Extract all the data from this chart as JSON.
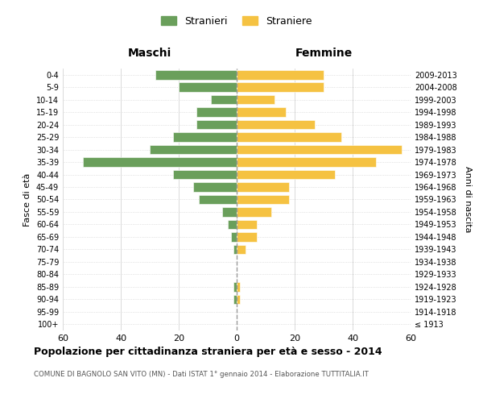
{
  "age_groups": [
    "100+",
    "95-99",
    "90-94",
    "85-89",
    "80-84",
    "75-79",
    "70-74",
    "65-69",
    "60-64",
    "55-59",
    "50-54",
    "45-49",
    "40-44",
    "35-39",
    "30-34",
    "25-29",
    "20-24",
    "15-19",
    "10-14",
    "5-9",
    "0-4"
  ],
  "birth_years": [
    "≤ 1913",
    "1914-1918",
    "1919-1923",
    "1924-1928",
    "1929-1933",
    "1934-1938",
    "1939-1943",
    "1944-1948",
    "1949-1953",
    "1954-1958",
    "1959-1963",
    "1964-1968",
    "1969-1973",
    "1974-1978",
    "1979-1983",
    "1984-1988",
    "1989-1993",
    "1994-1998",
    "1999-2003",
    "2004-2008",
    "2009-2013"
  ],
  "males": [
    0,
    0,
    1,
    1,
    0,
    0,
    1,
    2,
    3,
    5,
    13,
    15,
    22,
    53,
    30,
    22,
    14,
    14,
    9,
    20,
    28
  ],
  "females": [
    0,
    0,
    1,
    1,
    0,
    0,
    3,
    7,
    7,
    12,
    18,
    18,
    34,
    48,
    57,
    36,
    27,
    17,
    13,
    30,
    30
  ],
  "male_color": "#6a9f5b",
  "female_color": "#f5c242",
  "male_label": "Stranieri",
  "female_label": "Straniere",
  "title": "Popolazione per cittadinanza straniera per età e sesso - 2014",
  "subtitle": "COMUNE DI BAGNOLO SAN VITO (MN) - Dati ISTAT 1° gennaio 2014 - Elaborazione TUTTITALIA.IT",
  "xlabel_left": "Maschi",
  "xlabel_right": "Femmine",
  "ylabel_left": "Fasce di età",
  "ylabel_right": "Anni di nascita",
  "xlim": 60,
  "background_color": "#ffffff",
  "grid_color": "#cccccc"
}
